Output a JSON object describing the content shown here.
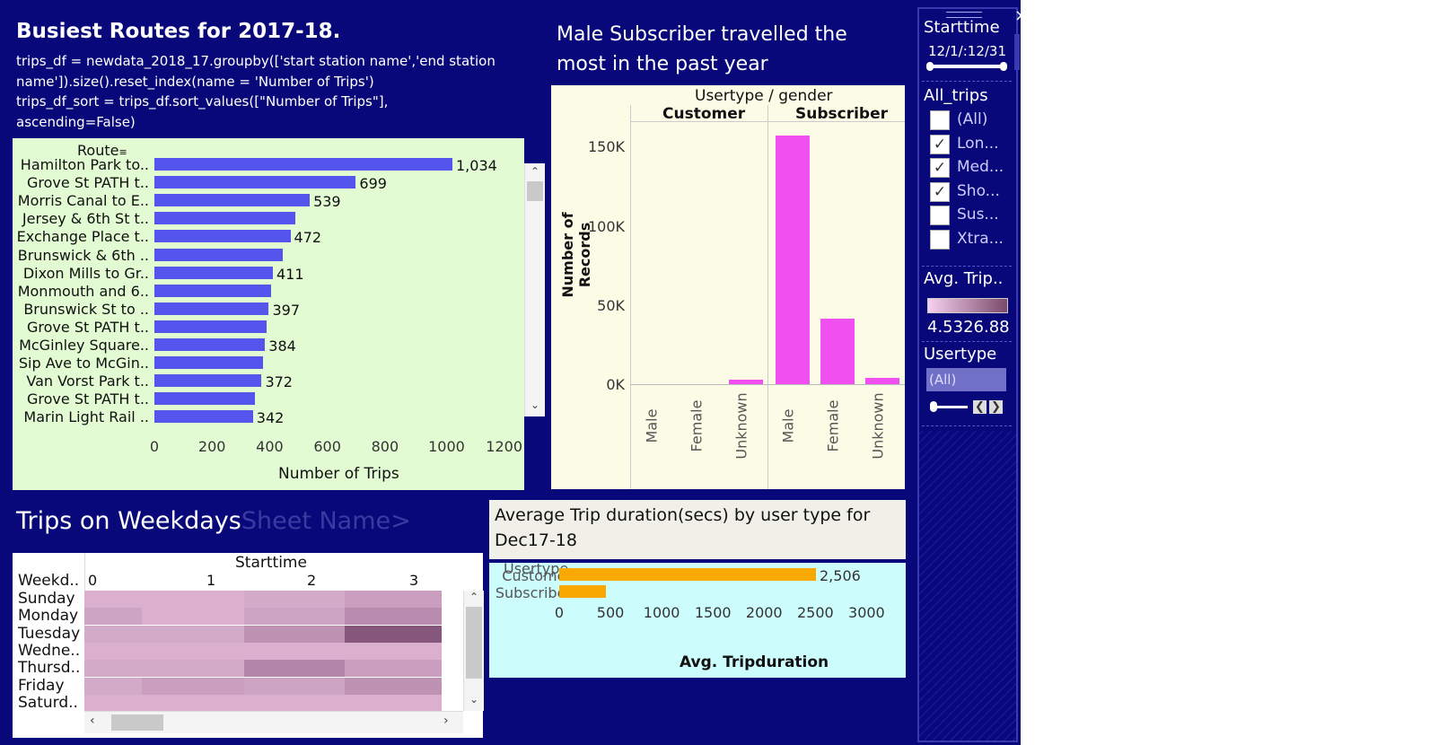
{
  "routes": {
    "title": "Busiest Routes for 2017-18.",
    "code": [
      "trips_df = newdata_2018_17.groupby(['start station name','end station",
      "name']).size().reset_index(name = 'Number of Trips')",
      "trips_df_sort = trips_df.sort_values([\"Number of Trips\"],",
      "ascending=False)"
    ],
    "axis_header": "Route",
    "xlabel": "Number of Trips",
    "x_ticks": [
      "0",
      "200",
      "400",
      "600",
      "800",
      "1000",
      "1200"
    ],
    "rows": [
      {
        "label": "Hamilton Park to..",
        "value": 1034,
        "value_label": "1,034"
      },
      {
        "label": "Grove St PATH t..",
        "value": 699,
        "value_label": "699"
      },
      {
        "label": "Morris Canal to E..",
        "value": 539,
        "value_label": "539"
      },
      {
        "label": "Jersey & 6th St t..",
        "value": 490,
        "value_label": ""
      },
      {
        "label": "Exchange Place t..",
        "value": 472,
        "value_label": "472"
      },
      {
        "label": "Brunswick & 6th ..",
        "value": 445,
        "value_label": ""
      },
      {
        "label": "Dixon Mills to Gr..",
        "value": 411,
        "value_label": "411"
      },
      {
        "label": "Monmouth and 6..",
        "value": 404,
        "value_label": ""
      },
      {
        "label": "Brunswick St to ..",
        "value": 397,
        "value_label": "397"
      },
      {
        "label": "Grove St PATH t..",
        "value": 390,
        "value_label": ""
      },
      {
        "label": "McGinley Square..",
        "value": 384,
        "value_label": "384"
      },
      {
        "label": "Sip Ave to McGin..",
        "value": 378,
        "value_label": ""
      },
      {
        "label": "Van Vorst Park t..",
        "value": 372,
        "value_label": "372"
      },
      {
        "label": "Grove St PATH t..",
        "value": 350,
        "value_label": ""
      },
      {
        "label": "Marin Light Rail ..",
        "value": 342,
        "value_label": "342"
      }
    ]
  },
  "gender_chart": {
    "title_line1": "Male Subscriber travelled the",
    "title_line2": "most in the past year",
    "header": "Usertype / gender",
    "groups": [
      "Customer",
      "Subscriber"
    ],
    "ylabel": "Number of Records",
    "y_ticks": [
      "150K",
      "100K",
      "50K",
      "0K"
    ],
    "categories": [
      "Male",
      "Female",
      "Unknown",
      "Male",
      "Female",
      "Unknown"
    ]
  },
  "weekdays": {
    "title": "Trips on Weekdays",
    "ghost": "Sheet Name>",
    "col_header": "Starttime",
    "row_header": "Weekd..",
    "cols": [
      "0",
      "1",
      "2",
      "3"
    ],
    "rows": [
      "Sunday",
      "Monday",
      "Tuesday",
      "Wedne..",
      "Thursd..",
      "Friday",
      "Saturd.."
    ]
  },
  "avg_chart": {
    "title_line1": "Average Trip duration(secs) by user type for",
    "title_line2": "Dec17-18",
    "axis_header": "Usertype",
    "rows": [
      {
        "label": "Customer",
        "value": 2506,
        "value_label": "2,506"
      },
      {
        "label": "Subscriber",
        "value": 460,
        "value_label": ""
      }
    ],
    "x_ticks": [
      "0",
      "500",
      "1000",
      "1500",
      "2000",
      "2500",
      "3000"
    ],
    "xlabel": "Avg. Tripduration"
  },
  "filters": {
    "starttime_title": "Starttime",
    "starttime_range": "12/1/:12/31",
    "alltrips_title": "All_trips",
    "options": [
      {
        "label": "(All)",
        "checked": false
      },
      {
        "label": "Lon...",
        "checked": true
      },
      {
        "label": "Med...",
        "checked": true
      },
      {
        "label": "Sho...",
        "checked": true
      },
      {
        "label": "Sus...",
        "checked": false
      },
      {
        "label": "Xtra...",
        "checked": false
      }
    ],
    "avg_title": "Avg. Trip..",
    "avg_range": "4.5326.88",
    "usertype_title": "Usertype",
    "usertype_value": "(All)",
    "close_glyph": "×",
    "check_glyph": "✓"
  },
  "chart_data": [
    {
      "type": "bar",
      "title": "Busiest Routes for 2017-18.",
      "xlabel": "Number of Trips",
      "ylabel": "Route",
      "xlim": [
        0,
        1200
      ],
      "categories": [
        "Hamilton Park to..",
        "Grove St PATH t..",
        "Morris Canal to E..",
        "Jersey & 6th St t..",
        "Exchange Place t..",
        "Brunswick & 6th ..",
        "Dixon Mills to Gr..",
        "Monmouth and 6..",
        "Brunswick St to ..",
        "Grove St PATH t..",
        "McGinley Square..",
        "Sip Ave to McGin..",
        "Van Vorst Park t..",
        "Grove St PATH t..",
        "Marin Light Rail .."
      ],
      "values": [
        1034,
        699,
        539,
        490,
        472,
        445,
        411,
        404,
        397,
        390,
        384,
        378,
        372,
        350,
        342
      ]
    },
    {
      "type": "bar",
      "title": "Male Subscriber travelled the most in the past year",
      "ylabel": "Number of Records",
      "ylim": [
        0,
        160000
      ],
      "categories": [
        "Customer Male",
        "Customer Female",
        "Customer Unknown",
        "Subscriber Male",
        "Subscriber Female",
        "Subscriber Unknown"
      ],
      "values": [
        0,
        0,
        3000,
        157000,
        41000,
        4000
      ]
    },
    {
      "type": "heatmap",
      "title": "Trips on Weekdays",
      "xlabel": "Starttime",
      "ylabel": "Weekd..",
      "x": [
        "0",
        "1",
        "2",
        "3"
      ],
      "y": [
        "Sunday",
        "Monday",
        "Tuesday",
        "Wedne..",
        "Thursd..",
        "Friday",
        "Saturd.."
      ],
      "intensity": [
        [
          0.2,
          0.2,
          0.25,
          0.35
        ],
        [
          0.3,
          0.2,
          0.3,
          0.5
        ],
        [
          0.25,
          0.25,
          0.45,
          0.95
        ],
        [
          0.2,
          0.2,
          0.2,
          0.2
        ],
        [
          0.25,
          0.25,
          0.55,
          0.35
        ],
        [
          0.25,
          0.35,
          0.3,
          0.45
        ],
        [
          0.2,
          0.2,
          0.2,
          0.2
        ]
      ]
    },
    {
      "type": "bar",
      "title": "Average Trip duration(secs) by user type for Dec17-18",
      "xlabel": "Avg. Tripduration",
      "ylabel": "Usertype",
      "xlim": [
        0,
        3000
      ],
      "categories": [
        "Customer",
        "Subscriber"
      ],
      "values": [
        2506,
        460
      ]
    }
  ]
}
